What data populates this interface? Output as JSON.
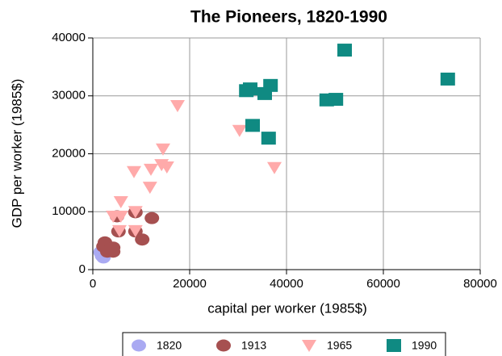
{
  "chart_data": {
    "type": "scatter",
    "title": "The Pioneers, 1820-1990",
    "xlabel": "capital per worker (1985$)",
    "ylabel": "GDP per worker (1985$)",
    "xlim": [
      0,
      80000
    ],
    "ylim": [
      0,
      40000
    ],
    "xticks": [
      0,
      20000,
      40000,
      60000,
      80000
    ],
    "yticks": [
      0,
      10000,
      20000,
      30000,
      40000
    ],
    "grid": true,
    "legend": "bottom",
    "series": [
      {
        "name": "1820",
        "color": "#aaaaf2",
        "marker": "circle",
        "x": [
          1600,
          1900,
          2200
        ],
        "values": [
          3000,
          2400,
          2100
        ]
      },
      {
        "name": "1913",
        "color": "#a65050",
        "marker": "circle",
        "x": [
          2500,
          2200,
          3800,
          4200,
          3000,
          4200,
          5000,
          5300,
          8800,
          8800,
          12200,
          10200
        ],
        "values": [
          4700,
          4000,
          3600,
          3800,
          3100,
          3100,
          9200,
          6600,
          9900,
          6600,
          8900,
          5200
        ]
      },
      {
        "name": "1965",
        "color": "#ffaaaa",
        "marker": "triangle-down",
        "x": [
          17500,
          30300,
          37500,
          14500,
          14200,
          15300,
          12000,
          8500,
          11800,
          5800,
          4200,
          5800,
          8800,
          8800,
          5500
        ],
        "values": [
          28300,
          24000,
          17600,
          20800,
          18100,
          17700,
          17300,
          16900,
          14200,
          11700,
          9200,
          9200,
          10000,
          6700,
          6700
        ]
      },
      {
        "name": "1990",
        "color": "#0f8a82",
        "marker": "square",
        "x": [
          31700,
          32500,
          36700,
          35500,
          33000,
          36300,
          48300,
          50200,
          52000,
          73300
        ],
        "values": [
          30900,
          31200,
          31800,
          30400,
          24900,
          22700,
          29300,
          29400,
          37900,
          32900
        ]
      }
    ]
  }
}
